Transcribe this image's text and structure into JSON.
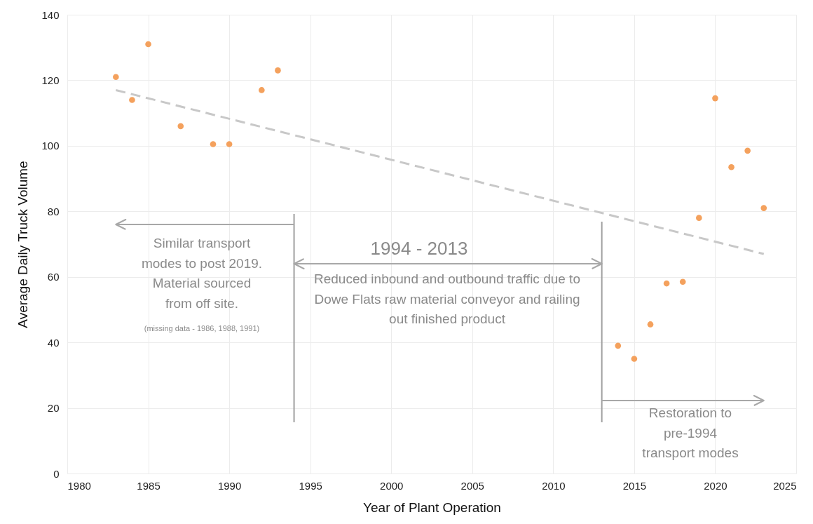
{
  "chart_data": {
    "type": "scatter",
    "xlabel": "Year of Plant Operation",
    "ylabel": "Average Daily Truck Volume",
    "xlim": [
      1980,
      2025
    ],
    "xticks": [
      1980,
      1985,
      1990,
      1995,
      2000,
      2005,
      2010,
      2015,
      2020,
      2025
    ],
    "ylim": [
      0,
      140
    ],
    "yticks": [
      0,
      20,
      40,
      60,
      80,
      100,
      120,
      140
    ],
    "grid": true,
    "series": [
      {
        "type": "scatter",
        "color": "#f4a15d",
        "marker": "circle",
        "x": [
          1983,
          1984,
          1985,
          1987,
          1989,
          1990,
          1992,
          1993,
          2014,
          2015,
          2016,
          2017,
          2018,
          2019,
          2020,
          2021,
          2022,
          2023
        ],
        "values": [
          121,
          114,
          131,
          106,
          100.5,
          100.5,
          117,
          123,
          39,
          35,
          45.5,
          58,
          58.5,
          78,
          114.5,
          93.5,
          98.5,
          81
        ]
      },
      {
        "type": "line",
        "color": "#c8c8c8",
        "line_style": "dashed",
        "x": [
          1983,
          2023
        ],
        "values": [
          117,
          67
        ]
      }
    ],
    "ref_lines": [
      {
        "axis": "x",
        "value": 1994,
        "color": "#a0a0a0"
      },
      {
        "axis": "x",
        "value": 2013,
        "color": "#a0a0a0"
      }
    ],
    "annotations": [
      "Similar transport modes to post 2019. Material sourced from off site.",
      "(missing data - 1986, 1988, 1991)",
      "1994 - 2013",
      "Reduced inbound and outbound traffic due to Dowe Flats raw material conveyor and railing out finished product",
      "Restoration to pre-1994 transport modes"
    ]
  }
}
